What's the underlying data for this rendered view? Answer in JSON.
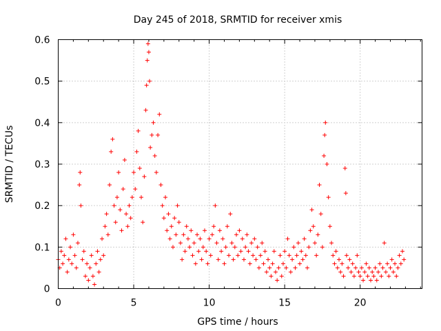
{
  "chart_data": {
    "type": "scatter",
    "title": "Day 245 of 2018, SRMTID for receiver xmis",
    "xlabel": "GPS time / hours",
    "ylabel": "SRMTID / TECUs",
    "xlim": [
      0,
      24.1
    ],
    "ylim": [
      0,
      0.6
    ],
    "xticks": [
      0,
      5,
      10,
      15,
      20
    ],
    "yticks": [
      0,
      0.1,
      0.2,
      0.3,
      0.4,
      0.5,
      0.6
    ],
    "xtick_labels": [
      "0",
      "5",
      "10",
      "15",
      "20"
    ],
    "ytick_labels": [
      "0",
      "0.1",
      "0.2",
      "0.3",
      "0.4",
      "0.5",
      "0.6"
    ],
    "grid": true,
    "marker": "+",
    "color": "#ff0000",
    "series": [
      {
        "name": "SRMTID",
        "points": [
          [
            0.0,
            0.07
          ],
          [
            0.1,
            0.05
          ],
          [
            0.2,
            0.09
          ],
          [
            0.3,
            0.06
          ],
          [
            0.4,
            0.08
          ],
          [
            0.5,
            0.12
          ],
          [
            0.6,
            0.04
          ],
          [
            0.7,
            0.07
          ],
          [
            0.8,
            0.1
          ],
          [
            0.9,
            0.06
          ],
          [
            1.0,
            0.13
          ],
          [
            1.1,
            0.08
          ],
          [
            1.2,
            0.05
          ],
          [
            1.3,
            0.11
          ],
          [
            1.4,
            0.25
          ],
          [
            1.45,
            0.28
          ],
          [
            1.5,
            0.2
          ],
          [
            1.6,
            0.07
          ],
          [
            1.7,
            0.09
          ],
          [
            1.8,
            0.03
          ],
          [
            1.9,
            0.06
          ],
          [
            2.0,
            0.02
          ],
          [
            2.1,
            0.05
          ],
          [
            2.2,
            0.08
          ],
          [
            2.3,
            0.03
          ],
          [
            2.4,
            0.01
          ],
          [
            2.5,
            0.06
          ],
          [
            2.6,
            0.09
          ],
          [
            2.7,
            0.04
          ],
          [
            2.8,
            0.07
          ],
          [
            2.9,
            0.12
          ],
          [
            3.0,
            0.08
          ],
          [
            3.1,
            0.15
          ],
          [
            3.2,
            0.18
          ],
          [
            3.3,
            0.13
          ],
          [
            3.4,
            0.25
          ],
          [
            3.5,
            0.33
          ],
          [
            3.6,
            0.36
          ],
          [
            3.7,
            0.2
          ],
          [
            3.8,
            0.16
          ],
          [
            3.9,
            0.22
          ],
          [
            4.0,
            0.28
          ],
          [
            4.1,
            0.19
          ],
          [
            4.2,
            0.14
          ],
          [
            4.3,
            0.24
          ],
          [
            4.4,
            0.31
          ],
          [
            4.5,
            0.18
          ],
          [
            4.6,
            0.15
          ],
          [
            4.7,
            0.2
          ],
          [
            4.8,
            0.17
          ],
          [
            4.9,
            0.22
          ],
          [
            5.0,
            0.28
          ],
          [
            5.1,
            0.24
          ],
          [
            5.2,
            0.33
          ],
          [
            5.3,
            0.38
          ],
          [
            5.4,
            0.29
          ],
          [
            5.5,
            0.22
          ],
          [
            5.6,
            0.16
          ],
          [
            5.7,
            0.27
          ],
          [
            5.8,
            0.43
          ],
          [
            5.85,
            0.49
          ],
          [
            5.9,
            0.55
          ],
          [
            5.95,
            0.59
          ],
          [
            6.0,
            0.57
          ],
          [
            6.05,
            0.5
          ],
          [
            6.1,
            0.34
          ],
          [
            6.2,
            0.37
          ],
          [
            6.3,
            0.4
          ],
          [
            6.4,
            0.32
          ],
          [
            6.5,
            0.28
          ],
          [
            6.6,
            0.37
          ],
          [
            6.7,
            0.42
          ],
          [
            6.8,
            0.25
          ],
          [
            6.9,
            0.2
          ],
          [
            7.0,
            0.17
          ],
          [
            7.1,
            0.22
          ],
          [
            7.2,
            0.14
          ],
          [
            7.3,
            0.18
          ],
          [
            7.4,
            0.12
          ],
          [
            7.5,
            0.15
          ],
          [
            7.6,
            0.1
          ],
          [
            7.7,
            0.17
          ],
          [
            7.8,
            0.13
          ],
          [
            7.9,
            0.2
          ],
          [
            8.0,
            0.16
          ],
          [
            8.1,
            0.11
          ],
          [
            8.2,
            0.07
          ],
          [
            8.3,
            0.13
          ],
          [
            8.4,
            0.09
          ],
          [
            8.5,
            0.15
          ],
          [
            8.6,
            0.12
          ],
          [
            8.7,
            0.1
          ],
          [
            8.8,
            0.14
          ],
          [
            8.9,
            0.08
          ],
          [
            9.0,
            0.11
          ],
          [
            9.1,
            0.06
          ],
          [
            9.2,
            0.13
          ],
          [
            9.3,
            0.09
          ],
          [
            9.4,
            0.12
          ],
          [
            9.5,
            0.07
          ],
          [
            9.6,
            0.1
          ],
          [
            9.7,
            0.14
          ],
          [
            9.8,
            0.09
          ],
          [
            9.9,
            0.06
          ],
          [
            10.0,
            0.12
          ],
          [
            10.1,
            0.08
          ],
          [
            10.2,
            0.13
          ],
          [
            10.3,
            0.15
          ],
          [
            10.4,
            0.2
          ],
          [
            10.5,
            0.11
          ],
          [
            10.6,
            0.07
          ],
          [
            10.7,
            0.14
          ],
          [
            10.8,
            0.09
          ],
          [
            10.9,
            0.12
          ],
          [
            11.0,
            0.06
          ],
          [
            11.1,
            0.1
          ],
          [
            11.2,
            0.15
          ],
          [
            11.3,
            0.08
          ],
          [
            11.4,
            0.18
          ],
          [
            11.5,
            0.11
          ],
          [
            11.6,
            0.07
          ],
          [
            11.7,
            0.1
          ],
          [
            11.8,
            0.13
          ],
          [
            11.9,
            0.08
          ],
          [
            12.0,
            0.14
          ],
          [
            12.1,
            0.09
          ],
          [
            12.2,
            0.12
          ],
          [
            12.3,
            0.07
          ],
          [
            12.4,
            0.1
          ],
          [
            12.5,
            0.13
          ],
          [
            12.6,
            0.09
          ],
          [
            12.7,
            0.06
          ],
          [
            12.8,
            0.11
          ],
          [
            12.9,
            0.08
          ],
          [
            13.0,
            0.12
          ],
          [
            13.1,
            0.07
          ],
          [
            13.2,
            0.1
          ],
          [
            13.3,
            0.05
          ],
          [
            13.4,
            0.08
          ],
          [
            13.5,
            0.11
          ],
          [
            13.6,
            0.06
          ],
          [
            13.7,
            0.09
          ],
          [
            13.8,
            0.04
          ],
          [
            13.9,
            0.07
          ],
          [
            14.0,
            0.05
          ],
          [
            14.1,
            0.03
          ],
          [
            14.2,
            0.06
          ],
          [
            14.3,
            0.09
          ],
          [
            14.4,
            0.04
          ],
          [
            14.5,
            0.02
          ],
          [
            14.6,
            0.05
          ],
          [
            14.7,
            0.08
          ],
          [
            14.8,
            0.03
          ],
          [
            14.9,
            0.06
          ],
          [
            15.0,
            0.09
          ],
          [
            15.1,
            0.05
          ],
          [
            15.2,
            0.12
          ],
          [
            15.3,
            0.08
          ],
          [
            15.4,
            0.04
          ],
          [
            15.5,
            0.07
          ],
          [
            15.6,
            0.1
          ],
          [
            15.7,
            0.05
          ],
          [
            15.8,
            0.08
          ],
          [
            15.9,
            0.11
          ],
          [
            16.0,
            0.06
          ],
          [
            16.1,
            0.09
          ],
          [
            16.2,
            0.07
          ],
          [
            16.3,
            0.12
          ],
          [
            16.4,
            0.08
          ],
          [
            16.5,
            0.05
          ],
          [
            16.6,
            0.1
          ],
          [
            16.7,
            0.14
          ],
          [
            16.8,
            0.19
          ],
          [
            16.9,
            0.15
          ],
          [
            17.0,
            0.11
          ],
          [
            17.1,
            0.08
          ],
          [
            17.2,
            0.13
          ],
          [
            17.3,
            0.25
          ],
          [
            17.4,
            0.18
          ],
          [
            17.5,
            0.1
          ],
          [
            17.6,
            0.32
          ],
          [
            17.65,
            0.37
          ],
          [
            17.7,
            0.4
          ],
          [
            17.8,
            0.3
          ],
          [
            17.9,
            0.22
          ],
          [
            18.0,
            0.15
          ],
          [
            18.1,
            0.11
          ],
          [
            18.2,
            0.08
          ],
          [
            18.3,
            0.06
          ],
          [
            18.4,
            0.09
          ],
          [
            18.5,
            0.05
          ],
          [
            18.6,
            0.07
          ],
          [
            18.7,
            0.04
          ],
          [
            18.8,
            0.06
          ],
          [
            18.9,
            0.03
          ],
          [
            19.0,
            0.29
          ],
          [
            19.05,
            0.23
          ],
          [
            19.1,
            0.08
          ],
          [
            19.2,
            0.05
          ],
          [
            19.3,
            0.07
          ],
          [
            19.4,
            0.04
          ],
          [
            19.5,
            0.06
          ],
          [
            19.6,
            0.03
          ],
          [
            19.7,
            0.05
          ],
          [
            19.8,
            0.08
          ],
          [
            19.9,
            0.04
          ],
          [
            20.0,
            0.03
          ],
          [
            20.1,
            0.05
          ],
          [
            20.2,
            0.02
          ],
          [
            20.3,
            0.04
          ],
          [
            20.4,
            0.06
          ],
          [
            20.5,
            0.03
          ],
          [
            20.6,
            0.05
          ],
          [
            20.7,
            0.02
          ],
          [
            20.8,
            0.04
          ],
          [
            20.9,
            0.03
          ],
          [
            21.0,
            0.05
          ],
          [
            21.1,
            0.02
          ],
          [
            21.2,
            0.04
          ],
          [
            21.3,
            0.06
          ],
          [
            21.4,
            0.03
          ],
          [
            21.5,
            0.05
          ],
          [
            21.6,
            0.11
          ],
          [
            21.7,
            0.04
          ],
          [
            21.8,
            0.06
          ],
          [
            21.9,
            0.03
          ],
          [
            22.0,
            0.05
          ],
          [
            22.1,
            0.07
          ],
          [
            22.2,
            0.04
          ],
          [
            22.3,
            0.06
          ],
          [
            22.4,
            0.03
          ],
          [
            22.5,
            0.05
          ],
          [
            22.6,
            0.08
          ],
          [
            22.7,
            0.06
          ],
          [
            22.8,
            0.09
          ],
          [
            22.9,
            0.07
          ]
        ]
      }
    ]
  }
}
